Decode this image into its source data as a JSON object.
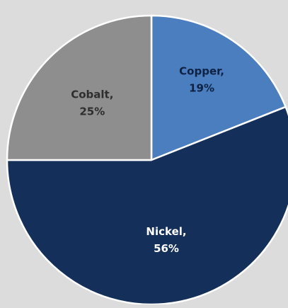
{
  "chart_data": {
    "type": "pie",
    "title": "",
    "slices": [
      {
        "name": "Copper",
        "value": 19,
        "label_line1": "Copper,",
        "label_line2": "19%",
        "color": "#4a7ebf",
        "label_color": "#0f2244"
      },
      {
        "name": "Nickel",
        "value": 56,
        "label_line1": "Nickel,",
        "label_line2": "56%",
        "color": "#14305a",
        "label_color": "#ffffff"
      },
      {
        "name": "Cobalt",
        "value": 25,
        "label_line1": "Cobalt,",
        "label_line2": "25%",
        "color": "#8e8e8e",
        "label_color": "#2e2e2e"
      }
    ],
    "start_angle_deg": 0,
    "direction": "clockwise",
    "legend": "none",
    "slice_border_color": "#ffffff"
  },
  "background_color": "#dcdcdc"
}
